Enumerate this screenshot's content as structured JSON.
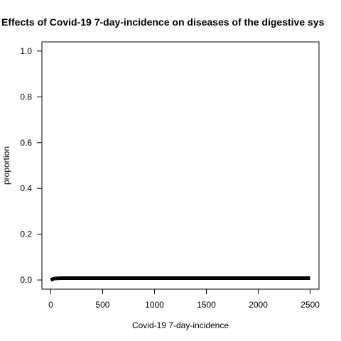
{
  "chart_data": {
    "type": "line",
    "title": "Effects of Covid-19 7-day-incidence on diseases of the digestive sys",
    "xlabel": "Covid-19 7-day-incidence",
    "ylabel": "proportion",
    "xlim": [
      -85,
      2585
    ],
    "ylim": [
      -0.04,
      1.04
    ],
    "x_ticks": [
      0,
      500,
      1000,
      1500,
      2000,
      2500
    ],
    "x_tick_labels": [
      "0",
      "500",
      "1000",
      "1500",
      "2000",
      "2500"
    ],
    "y_ticks": [
      0.0,
      0.2,
      0.4,
      0.6,
      0.8,
      1.0
    ],
    "y_tick_labels": [
      "0.0",
      "0.2",
      "0.4",
      "0.6",
      "0.8",
      "1.0"
    ],
    "grid": false,
    "legend": "none",
    "line_color": "#000000",
    "series": [
      {
        "x": [
          0,
          10,
          20,
          30,
          50,
          100,
          250,
          500,
          1000,
          1500,
          2000,
          2500
        ],
        "y": [
          0.0,
          0.002,
          0.004,
          0.006,
          0.007,
          0.008,
          0.008,
          0.008,
          0.008,
          0.008,
          0.008,
          0.008
        ]
      }
    ]
  }
}
